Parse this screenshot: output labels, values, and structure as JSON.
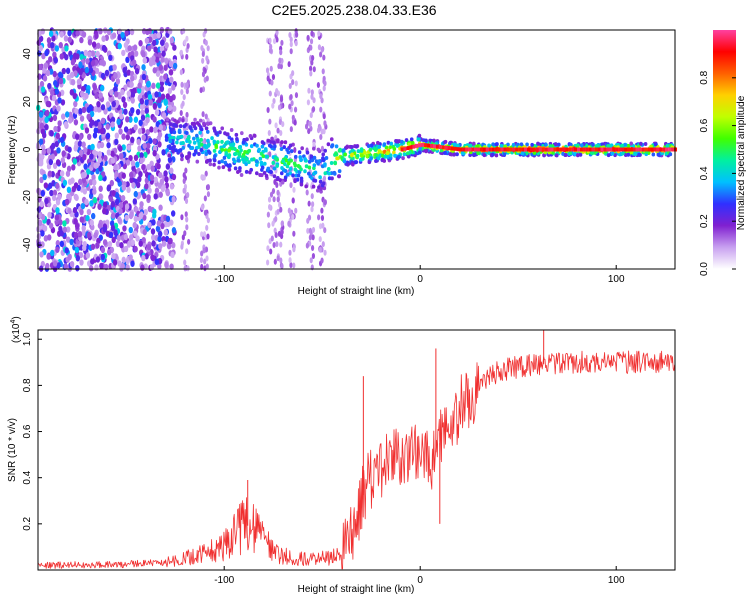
{
  "title": "C2E5.2025.238.04.33.E36",
  "chart_data": [
    {
      "type": "heatmap",
      "name": "spectrogram",
      "xlabel": "Height of straight line (km)",
      "ylabel": "Frequency (Hz)",
      "xlim": [
        -195,
        130
      ],
      "ylim": [
        -50,
        50
      ],
      "xticks": [
        -100,
        0,
        100
      ],
      "xtick_labels": [
        "-100",
        "0",
        "100"
      ],
      "yticks": [
        -40,
        -20,
        0,
        20,
        40
      ],
      "ytick_labels": [
        "-40",
        "-20",
        "0",
        "20",
        "40"
      ],
      "colorbar": {
        "label": "Normalized spectral amplitude",
        "range": [
          0.0,
          1.0
        ],
        "ticks": [
          0.0,
          0.2,
          0.4,
          0.6,
          0.8
        ],
        "tick_labels": [
          "0.0",
          "0.2",
          "0.4",
          "0.6",
          "0.8"
        ],
        "colors": [
          "#ffffff",
          "#c8a0f0",
          "#8020d0",
          "#3030ff",
          "#00c0ff",
          "#00f0a0",
          "#40ff00",
          "#c0ff00",
          "#ffd000",
          "#ff6000",
          "#ff0000",
          "#ff40a0"
        ]
      },
      "ridge": {
        "x": [
          -130,
          -120,
          -110,
          -100,
          -90,
          -80,
          -70,
          -60,
          -50,
          -45,
          -40,
          -30,
          -20,
          -10,
          0,
          10,
          20,
          40,
          60,
          80,
          100,
          130
        ],
        "frequency": [
          5,
          4,
          3,
          0,
          -2,
          -3,
          -5,
          -7,
          -9,
          -4,
          -3,
          -2,
          -1,
          0,
          2,
          1,
          0,
          0,
          0,
          0,
          0,
          0
        ],
        "amplitude": [
          0.3,
          0.4,
          0.45,
          0.5,
          0.5,
          0.45,
          0.5,
          0.45,
          0.4,
          0.6,
          0.6,
          0.7,
          0.75,
          0.8,
          0.85,
          0.88,
          0.9,
          0.95,
          0.95,
          0.95,
          0.95,
          0.95
        ]
      }
    },
    {
      "type": "line",
      "name": "snr",
      "xlabel": "Height of straight line (km)",
      "ylabel": "SNR (10 * v/v)",
      "y_multiplier": "(x10",
      "y_multiplier_exp": "4",
      "y_multiplier_close": ")",
      "xlim": [
        -195,
        130
      ],
      "ylim": [
        0,
        1.04
      ],
      "xticks": [
        -100,
        0,
        100
      ],
      "xtick_labels": [
        "-100",
        "0",
        "100"
      ],
      "yticks": [
        0.2,
        0.4,
        0.6,
        0.8,
        1.0
      ],
      "ytick_labels": [
        "0.2",
        "0.4",
        "0.6",
        "0.8",
        "1.0"
      ],
      "color": "#f03030",
      "envelope": {
        "x": [
          -195,
          -150,
          -130,
          -120,
          -110,
          -100,
          -95,
          -90,
          -85,
          -80,
          -75,
          -70,
          -60,
          -50,
          -40,
          -35,
          -30,
          -28,
          -25,
          -20,
          -15,
          -10,
          -5,
          0,
          5,
          10,
          15,
          20,
          30,
          40,
          50,
          60,
          80,
          100,
          120,
          130
        ],
        "values": [
          0.02,
          0.025,
          0.035,
          0.05,
          0.07,
          0.1,
          0.15,
          0.2,
          0.18,
          0.13,
          0.08,
          0.06,
          0.05,
          0.05,
          0.06,
          0.15,
          0.3,
          0.35,
          0.4,
          0.45,
          0.48,
          0.5,
          0.5,
          0.52,
          0.45,
          0.55,
          0.62,
          0.7,
          0.8,
          0.86,
          0.88,
          0.89,
          0.9,
          0.9,
          0.9,
          0.91
        ]
      },
      "spikes": [
        {
          "x": -88,
          "value": 0.39
        },
        {
          "x": -29,
          "value": 0.84
        },
        {
          "x": 8,
          "value": 0.96
        },
        {
          "x": 10,
          "value": 0.2
        },
        {
          "x": 63,
          "value": 1.04
        }
      ]
    }
  ]
}
